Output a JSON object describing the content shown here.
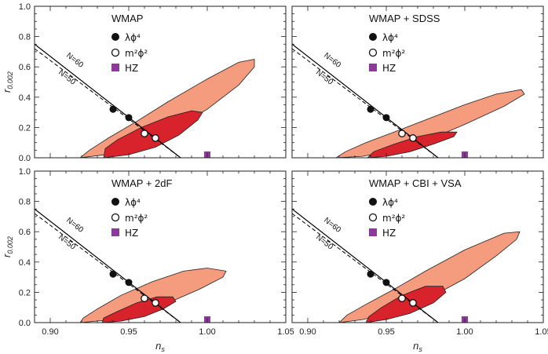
{
  "chart_data": {
    "type": "scatter",
    "xlabel_main": "n",
    "xlabel_sub": "s",
    "ylabel_main": "r",
    "ylabel_sub": "0.002",
    "xlim": [
      0.89,
      1.05
    ],
    "ylim": [
      0.0,
      1.0
    ],
    "x_ticks": [
      0.9,
      0.95,
      1.0,
      1.05
    ],
    "x_tick_labels": [
      "0.90",
      "0.95",
      "1.00",
      "1.05"
    ],
    "y_ticks": [
      0.0,
      0.2,
      0.4,
      0.6,
      0.8,
      1.0
    ],
    "y_tick_labels": [
      "0.0",
      "0.2",
      "0.4",
      "0.6",
      "0.8",
      "1.0"
    ],
    "colors": {
      "outer": "#f59b7e",
      "inner": "#d9232c",
      "hz": "#8b3a9a",
      "line": "#000000"
    },
    "legend": {
      "lambda_phi4": "λϕ⁴",
      "m2phi2": "m²ϕ²",
      "hz": "HZ"
    },
    "line_labels": {
      "n60": "N=60",
      "n50": "N=50"
    },
    "lines": {
      "n60": [
        [
          0.89,
          0.75
        ],
        [
          0.983,
          0.0
        ]
      ],
      "n50": [
        [
          0.89,
          0.72
        ],
        [
          0.983,
          0.0
        ]
      ]
    },
    "points": {
      "lambda_phi4": [
        [
          0.94,
          0.32
        ],
        [
          0.95,
          0.265
        ]
      ],
      "m2phi2": [
        [
          0.96,
          0.16
        ],
        [
          0.967,
          0.13
        ]
      ],
      "hz": [
        1.0,
        0.0
      ]
    },
    "panels": [
      {
        "title": "WMAP",
        "outer": [
          [
            0.919,
            0.0
          ],
          [
            0.935,
            0.02
          ],
          [
            0.955,
            0.08
          ],
          [
            0.975,
            0.17
          ],
          [
            1.0,
            0.32
          ],
          [
            1.02,
            0.48
          ],
          [
            1.03,
            0.6
          ],
          [
            1.03,
            0.65
          ],
          [
            1.02,
            0.63
          ],
          [
            1.0,
            0.52
          ],
          [
            0.975,
            0.37
          ],
          [
            0.955,
            0.24
          ],
          [
            0.937,
            0.13
          ],
          [
            0.925,
            0.05
          ],
          [
            0.919,
            0.0
          ]
        ],
        "inner": [
          [
            0.934,
            0.0
          ],
          [
            0.95,
            0.02
          ],
          [
            0.967,
            0.07
          ],
          [
            0.982,
            0.15
          ],
          [
            0.994,
            0.25
          ],
          [
            0.997,
            0.3
          ],
          [
            0.99,
            0.31
          ],
          [
            0.975,
            0.27
          ],
          [
            0.958,
            0.2
          ],
          [
            0.943,
            0.12
          ],
          [
            0.935,
            0.06
          ],
          [
            0.934,
            0.0
          ]
        ]
      },
      {
        "title": "WMAP + SDSS",
        "outer": [
          [
            0.918,
            0.0
          ],
          [
            0.935,
            0.01
          ],
          [
            0.955,
            0.05
          ],
          [
            0.975,
            0.11
          ],
          [
            1.0,
            0.22
          ],
          [
            1.025,
            0.34
          ],
          [
            1.038,
            0.42
          ],
          [
            1.036,
            0.45
          ],
          [
            1.02,
            0.42
          ],
          [
            1.0,
            0.35
          ],
          [
            0.975,
            0.25
          ],
          [
            0.955,
            0.17
          ],
          [
            0.937,
            0.1
          ],
          [
            0.924,
            0.04
          ],
          [
            0.918,
            0.0
          ]
        ],
        "inner": [
          [
            0.938,
            0.0
          ],
          [
            0.95,
            0.01
          ],
          [
            0.965,
            0.04
          ],
          [
            0.98,
            0.09
          ],
          [
            0.993,
            0.14
          ],
          [
            0.995,
            0.17
          ],
          [
            0.985,
            0.17
          ],
          [
            0.97,
            0.14
          ],
          [
            0.955,
            0.09
          ],
          [
            0.942,
            0.04
          ],
          [
            0.938,
            0.0
          ]
        ]
      },
      {
        "title": "WMAP + 2dF",
        "outer": [
          [
            0.919,
            0.0
          ],
          [
            0.935,
            0.015
          ],
          [
            0.955,
            0.06
          ],
          [
            0.975,
            0.13
          ],
          [
            0.995,
            0.22
          ],
          [
            1.01,
            0.3
          ],
          [
            1.012,
            0.34
          ],
          [
            1.0,
            0.36
          ],
          [
            0.985,
            0.34
          ],
          [
            0.965,
            0.27
          ],
          [
            0.945,
            0.18
          ],
          [
            0.93,
            0.09
          ],
          [
            0.921,
            0.03
          ],
          [
            0.919,
            0.0
          ]
        ],
        "inner": [
          [
            0.933,
            0.0
          ],
          [
            0.945,
            0.01
          ],
          [
            0.96,
            0.04
          ],
          [
            0.972,
            0.09
          ],
          [
            0.98,
            0.14
          ],
          [
            0.978,
            0.17
          ],
          [
            0.968,
            0.17
          ],
          [
            0.955,
            0.13
          ],
          [
            0.942,
            0.07
          ],
          [
            0.934,
            0.03
          ],
          [
            0.933,
            0.0
          ]
        ]
      },
      {
        "title": "WMAP + CBI + VSA",
        "outer": [
          [
            0.92,
            0.0
          ],
          [
            0.935,
            0.02
          ],
          [
            0.955,
            0.07
          ],
          [
            0.975,
            0.15
          ],
          [
            1.0,
            0.29
          ],
          [
            1.02,
            0.44
          ],
          [
            1.033,
            0.55
          ],
          [
            1.035,
            0.6
          ],
          [
            1.025,
            0.59
          ],
          [
            1.0,
            0.48
          ],
          [
            0.975,
            0.34
          ],
          [
            0.955,
            0.22
          ],
          [
            0.937,
            0.12
          ],
          [
            0.925,
            0.05
          ],
          [
            0.92,
            0.0
          ]
        ],
        "inner": [
          [
            0.937,
            0.0
          ],
          [
            0.95,
            0.02
          ],
          [
            0.965,
            0.06
          ],
          [
            0.98,
            0.13
          ],
          [
            0.988,
            0.2
          ],
          [
            0.986,
            0.24
          ],
          [
            0.975,
            0.24
          ],
          [
            0.96,
            0.18
          ],
          [
            0.947,
            0.1
          ],
          [
            0.939,
            0.04
          ],
          [
            0.937,
            0.0
          ]
        ]
      }
    ]
  }
}
